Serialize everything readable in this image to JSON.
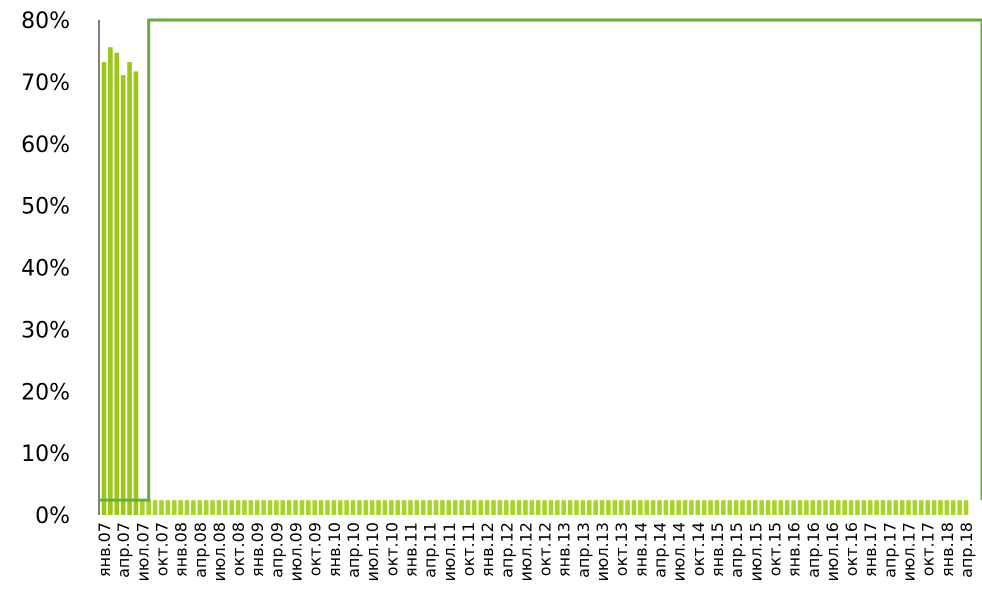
{
  "chart_data": {
    "type": "bar",
    "title": "",
    "xlabel": "",
    "ylabel": "",
    "ylim": [
      0,
      80
    ],
    "y_ticks": [
      "0%",
      "10%",
      "20%",
      "30%",
      "40%",
      "50%",
      "60%",
      "70%",
      "80%"
    ],
    "y_tick_values": [
      0,
      10,
      20,
      30,
      40,
      50,
      60,
      70,
      80
    ],
    "x_ticks": [
      "янв.07",
      "апр.07",
      "июл.07",
      "окт.07",
      "янв.08",
      "апр.08",
      "июл.08",
      "окт.08",
      "янв.09",
      "апр.09",
      "июл.09",
      "окт.09",
      "янв.10",
      "апр.10",
      "июл.10",
      "окт.10",
      "янв.11",
      "апр.11",
      "июл.11",
      "окт.11",
      "янв.12",
      "апр.12",
      "июл.12",
      "окт.12",
      "янв.13",
      "апр.13",
      "июл.13",
      "окт.13",
      "янв.14",
      "апр.14",
      "июл.14",
      "окт.14",
      "янв.15",
      "апр.15",
      "июл.15",
      "окт.15",
      "янв.16",
      "апр.16",
      "июл.16",
      "окт.16",
      "янв.17",
      "апр.17",
      "июл.17",
      "окт.17",
      "янв.18",
      "апр.18"
    ],
    "x_ticks_per_quarter": 3,
    "period_start": "янв.07",
    "series": [
      {
        "type": "bar",
        "values": [
          73.2,
          75.6,
          74.7,
          71.1,
          73.2,
          71.7
        ]
      },
      {
        "type": "bar",
        "fill_value": 2.4
      },
      {
        "type": "line",
        "step": true,
        "points": [
          {
            "x": "янв.07",
            "y": 2.4
          },
          {
            "x": "июл.07",
            "y": 2.4
          },
          {
            "x": "июл.07",
            "y": 80
          },
          {
            "x": "апр.18",
            "y": 80
          },
          {
            "x": "апр.18",
            "y": 2.4
          }
        ]
      }
    ],
    "grid": false,
    "colors": {
      "bar_tall": "#9bc814",
      "bar_low": "#a8d42a",
      "step_line": "#6aaa3a",
      "axis": "#000000"
    }
  }
}
